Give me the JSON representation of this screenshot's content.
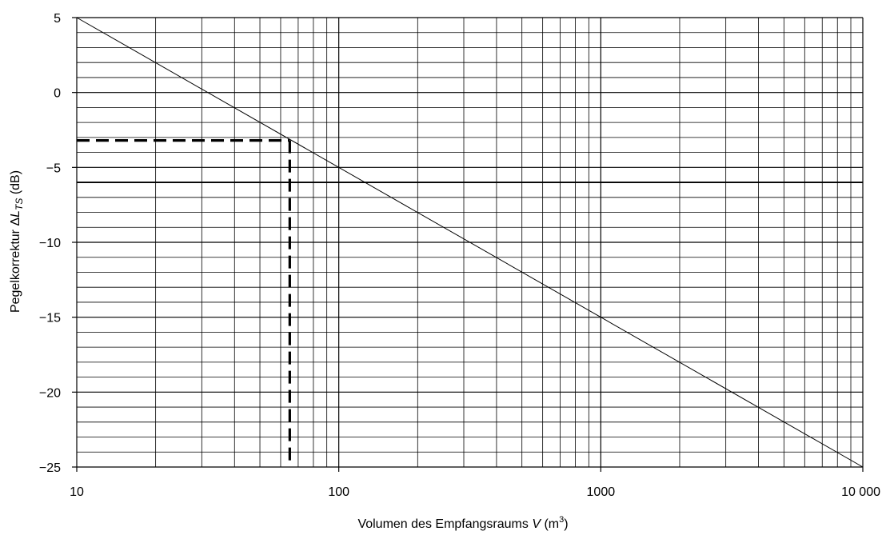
{
  "chart_data": {
    "type": "line",
    "x_scale": "log",
    "xlim": [
      10,
      10000
    ],
    "ylim": [
      -25,
      5
    ],
    "grid": true,
    "xticks": [
      10,
      100,
      1000,
      10000
    ],
    "xtick_labels": [
      "10",
      "100",
      "1000",
      "10 000"
    ],
    "yticks": [
      5,
      0,
      -5,
      -10,
      -15,
      -20,
      -25
    ],
    "ytick_labels": [
      "5",
      "0",
      "−5",
      "−10",
      "−15",
      "−20",
      "−25"
    ],
    "xlabel": {
      "text": "Volumen des Empfangsraums ",
      "var": "V",
      "unit_open": " (m",
      "unit_sup": "3",
      "unit_close": ")"
    },
    "ylabel": {
      "text": "Pegelkorrektur  Δ",
      "var": "L",
      "sub": "TS",
      "unit": " (dB)"
    },
    "series": [
      {
        "style": "solid-thin",
        "color": "#000000",
        "x": [
          10,
          10000
        ],
        "y": [
          5,
          -25
        ]
      }
    ],
    "reference": {
      "style": "dashed",
      "x": 65,
      "y": -3.2
    }
  }
}
